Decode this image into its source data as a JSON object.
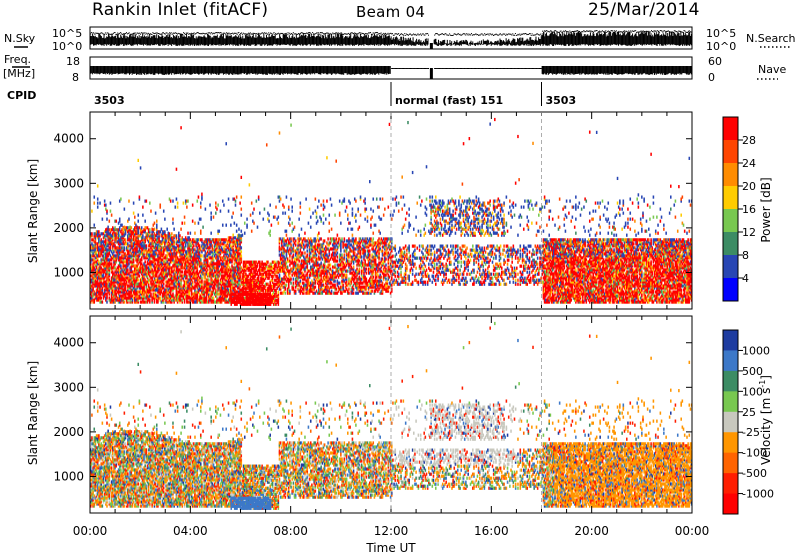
{
  "header": {
    "station": "Rankin Inlet (fitACF)",
    "beam": "Beam 04",
    "date": "25/Mar/2014"
  },
  "status_panel": {
    "nsky_label": "N.Sky",
    "nsearch_label": "N.Search",
    "noise_ticks": [
      "10^5",
      "10^0"
    ],
    "freq_label": "Freq.",
    "freq_unit": "[MHz]",
    "freq_ticks": [
      "18",
      "8"
    ],
    "nave_label": "Nave",
    "nave_ticks": [
      "60",
      "0"
    ],
    "cpid_label": "CPID",
    "cpid_segments": [
      {
        "start_hour": 0,
        "label": "3503"
      },
      {
        "start_hour": 12,
        "label": "normal (fast) 151"
      },
      {
        "start_hour": 18,
        "label": "3503"
      }
    ]
  },
  "chart_data": [
    {
      "type": "heatmap",
      "parameter": "power",
      "ylabel": "Slant Range [km]",
      "yticks": [
        1000,
        2000,
        3000,
        4000
      ],
      "ylim": [
        180,
        4600
      ],
      "xlim": [
        0,
        24
      ],
      "colorbar": {
        "label": "Power [dB]",
        "ticks": [
          "28",
          "24",
          "20",
          "16",
          "12",
          "8",
          "4"
        ],
        "colors": [
          "#ff0000",
          "#ff4500",
          "#ff8c00",
          "#ffcc00",
          "#78c850",
          "#3c8c64",
          "#2846b4",
          "#0000ff"
        ]
      }
    },
    {
      "type": "heatmap",
      "parameter": "velocity",
      "ylabel": "Slant Range [km]",
      "yticks": [
        1000,
        2000,
        3000,
        4000
      ],
      "ylim": [
        180,
        4600
      ],
      "xlim": [
        0,
        24
      ],
      "xlabel": "Time UT",
      "xticks": [
        "00:00",
        "04:00",
        "08:00",
        "12:00",
        "16:00",
        "20:00",
        "00:00"
      ],
      "colorbar": {
        "label": "Velocity [m s",
        "label_sup": "-1",
        "label_end": "]",
        "ticks": [
          "1000",
          "500",
          "100",
          "25",
          "-25",
          "-100",
          "-500",
          "-1000"
        ],
        "colors": [
          "#1e3ca0",
          "#3c78c8",
          "#3c8c64",
          "#78c850",
          "#c8c8be",
          "#ff9600",
          "#ff6400",
          "#ff1e00",
          "#ff0000"
        ]
      }
    }
  ]
}
